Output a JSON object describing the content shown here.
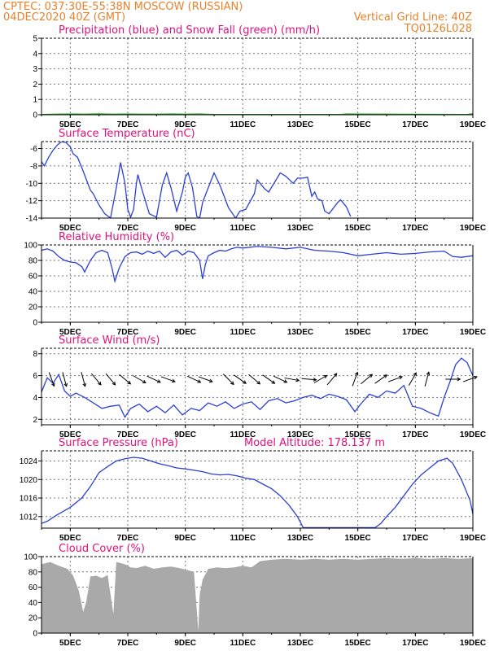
{
  "header": {
    "line1_left": "CPTEC:   037:30E-55:38N   MOSCOW (RUSSIAN)",
    "line2_left": "04DEC2020 40Z (GMT)",
    "line2_right": "Vertical Grid Line: 40Z",
    "code": "TQ0126L028"
  },
  "colors": {
    "header": "#e8822a",
    "title": "#e0117f",
    "series": "#2a3fd6",
    "snow": "#22aa22",
    "cloud": "#a9a9a9"
  },
  "chart_data": [
    {
      "type": "line",
      "title": "Precipitation (blue) and Snow Fall (green) (mm/h)",
      "x_ticks": [
        "5DEC",
        "7DEC",
        "9DEC",
        "11DEC",
        "13DEC",
        "15DEC",
        "17DEC",
        "19DEC"
      ],
      "y_ticks": [
        "5",
        "4",
        "3",
        "2",
        "1",
        "0"
      ],
      "ylim": [
        0,
        5
      ],
      "grid": true,
      "series": [
        {
          "color": "#2a3fd6",
          "x": [
            4.0,
            19.0
          ],
          "values": [
            0,
            0
          ]
        },
        {
          "color": "#22aa22",
          "x": [
            4.0,
            4.5,
            5.0,
            5.5,
            6.0,
            6.5,
            7.0,
            7.5,
            8.0,
            8.5,
            9.0,
            9.5,
            10.0,
            14.4,
            14.6,
            18.8,
            19.0
          ],
          "values": [
            0,
            0.02,
            0.03,
            0.02,
            0.04,
            0.02,
            0.03,
            0.02,
            0.02,
            0.03,
            0.02,
            0.03,
            0,
            0,
            0.03,
            0,
            0.05
          ]
        }
      ]
    },
    {
      "type": "line",
      "title": "Surface Temperature (nC)",
      "x_ticks": [
        "5DEC",
        "7DEC",
        "9DEC",
        "11DEC",
        "13DEC",
        "15DEC",
        "17DEC",
        "19DEC"
      ],
      "y_ticks": [
        "-6",
        "-8",
        "-10",
        "-12",
        "-14"
      ],
      "ylim": [
        -14,
        -5.2
      ],
      "grid": true,
      "series": [
        {
          "color": "#2a3fd6",
          "x": [
            4.0,
            4.1,
            4.25,
            4.4,
            4.55,
            4.7,
            4.85,
            5.0,
            5.1,
            5.25,
            5.4,
            5.55,
            5.7,
            5.8,
            6.0,
            6.2,
            6.4,
            6.6,
            6.75,
            6.9,
            7.0,
            7.1,
            7.2,
            7.3,
            7.35,
            7.5,
            7.75,
            8.0,
            8.2,
            8.35,
            8.5,
            8.7,
            8.9,
            9.0,
            9.1,
            9.25,
            9.4,
            9.5,
            9.6,
            9.8,
            10.0,
            10.2,
            10.5,
            10.75,
            10.9,
            11.1,
            11.4,
            11.5,
            11.75,
            11.9,
            12.3,
            12.5,
            12.75,
            12.9,
            13.1,
            13.25,
            13.4,
            13.5,
            13.6,
            13.75,
            13.85,
            14.0,
            14.3,
            14.4,
            14.6,
            14.75
          ],
          "values": [
            -7.5,
            -8.0,
            -7.0,
            -6.2,
            -5.6,
            -5.2,
            -5.3,
            -5.8,
            -6.6,
            -7.0,
            -8.2,
            -9.5,
            -10.8,
            -11.2,
            -12.5,
            -13.5,
            -14.0,
            -10.5,
            -7.6,
            -10.0,
            -13.0,
            -13.9,
            -13.0,
            -10.0,
            -9.0,
            -10.8,
            -13.5,
            -13.9,
            -10.2,
            -8.8,
            -10.5,
            -13.2,
            -11.0,
            -9.3,
            -8.8,
            -10.5,
            -13.8,
            -14.0,
            -12.2,
            -10.5,
            -8.8,
            -10.2,
            -12.8,
            -14.0,
            -13.2,
            -13.0,
            -11.2,
            -9.6,
            -10.6,
            -11.0,
            -8.8,
            -9.2,
            -10.0,
            -9.4,
            -9.4,
            -9.3,
            -11.5,
            -11.0,
            -11.8,
            -12.0,
            -13.2,
            -13.5,
            -12.2,
            -11.9,
            -12.7,
            -13.8
          ]
        }
      ]
    },
    {
      "type": "line",
      "title": "Relative Humidity (%)",
      "x_ticks": [
        "5DEC",
        "7DEC",
        "9DEC",
        "11DEC",
        "13DEC",
        "15DEC",
        "17DEC",
        "19DEC"
      ],
      "y_ticks": [
        "100",
        "80",
        "60",
        "40",
        "20",
        "0"
      ],
      "ylim": [
        0,
        100
      ],
      "grid": true,
      "series": [
        {
          "color": "#2a3fd6",
          "x": [
            4.0,
            4.2,
            4.4,
            4.6,
            4.8,
            5.0,
            5.2,
            5.4,
            5.5,
            5.7,
            5.9,
            6.1,
            6.3,
            6.45,
            6.55,
            6.7,
            6.9,
            7.1,
            7.3,
            7.5,
            7.7,
            7.9,
            8.1,
            8.3,
            8.5,
            8.7,
            8.9,
            9.1,
            9.3,
            9.5,
            9.6,
            9.7,
            9.8,
            10.0,
            10.2,
            10.4,
            10.6,
            10.8,
            11.0,
            11.5,
            12.0,
            12.5,
            13.0,
            13.5,
            14.0,
            14.5,
            15.0,
            15.5,
            16.0,
            16.5,
            17.0,
            17.5,
            18.0,
            18.3,
            18.6,
            19.0
          ],
          "values": [
            93,
            95,
            92,
            85,
            80,
            78,
            77,
            72,
            65,
            80,
            90,
            93,
            90,
            70,
            53,
            70,
            85,
            90,
            91,
            88,
            92,
            89,
            92,
            84,
            91,
            93,
            87,
            92,
            90,
            80,
            56,
            75,
            86,
            90,
            93,
            92,
            95,
            97,
            96,
            98,
            97,
            95,
            97,
            93,
            92,
            90,
            86,
            88,
            90,
            88,
            89,
            91,
            92,
            85,
            84,
            86
          ]
        }
      ]
    },
    {
      "type": "line",
      "title": "Surface Wind (m/s)",
      "x_ticks": [
        "5DEC",
        "7DEC",
        "9DEC",
        "11DEC",
        "13DEC",
        "15DEC",
        "17DEC",
        "19DEC"
      ],
      "y_ticks": [
        "8",
        "6",
        "4",
        "2"
      ],
      "ylim": [
        1.5,
        8.5
      ],
      "grid": true,
      "series": [
        {
          "color": "#2a3fd6",
          "x": [
            4.0,
            4.2,
            4.4,
            4.6,
            4.8,
            5.0,
            5.2,
            5.5,
            5.8,
            6.1,
            6.4,
            6.7,
            6.9,
            7.1,
            7.4,
            7.7,
            8.0,
            8.3,
            8.6,
            8.9,
            9.2,
            9.5,
            9.8,
            10.1,
            10.4,
            10.7,
            11.0,
            11.3,
            11.6,
            11.9,
            12.2,
            12.5,
            12.8,
            13.1,
            13.4,
            13.7,
            14.0,
            14.3,
            14.6,
            14.9,
            15.1,
            15.4,
            15.7,
            16.0,
            16.3,
            16.6,
            16.9,
            17.2,
            17.5,
            17.8,
            18.0,
            18.2,
            18.4,
            18.6,
            18.8,
            19.0
          ],
          "values": [
            4.5,
            5.8,
            5.3,
            6.1,
            4.6,
            4.1,
            4.4,
            4.0,
            3.5,
            3.0,
            3.2,
            3.3,
            2.2,
            3.0,
            3.4,
            2.7,
            3.2,
            2.6,
            3.3,
            2.4,
            3.0,
            2.8,
            3.5,
            3.2,
            3.6,
            3.0,
            3.4,
            3.6,
            2.9,
            3.7,
            3.9,
            3.5,
            3.7,
            4.0,
            4.2,
            3.9,
            4.3,
            4.1,
            3.8,
            2.7,
            3.4,
            4.3,
            4.0,
            4.6,
            4.4,
            5.1,
            3.2,
            3.0,
            2.6,
            2.3,
            4.0,
            5.4,
            7.0,
            7.6,
            7.2,
            6.0
          ]
        }
      ],
      "wind_arrows": [
        {
          "x": 4.35,
          "dir_deg": 160
        },
        {
          "x": 4.8,
          "dir_deg": 165
        },
        {
          "x": 5.45,
          "dir_deg": 165
        },
        {
          "x": 5.9,
          "dir_deg": 140
        },
        {
          "x": 6.4,
          "dir_deg": 140
        },
        {
          "x": 6.9,
          "dir_deg": 130
        },
        {
          "x": 7.4,
          "dir_deg": 120
        },
        {
          "x": 7.9,
          "dir_deg": 115
        },
        {
          "x": 8.4,
          "dir_deg": 110
        },
        {
          "x": 9.3,
          "dir_deg": 115
        },
        {
          "x": 9.7,
          "dir_deg": 110
        },
        {
          "x": 10.5,
          "dir_deg": 135
        },
        {
          "x": 10.9,
          "dir_deg": 125
        },
        {
          "x": 11.4,
          "dir_deg": 130
        },
        {
          "x": 11.9,
          "dir_deg": 125
        },
        {
          "x": 12.3,
          "dir_deg": 115
        },
        {
          "x": 12.7,
          "dir_deg": 100
        },
        {
          "x": 13.3,
          "dir_deg": 95
        },
        {
          "x": 13.7,
          "dir_deg": 60
        },
        {
          "x": 14.1,
          "dir_deg": 40
        },
        {
          "x": 14.9,
          "dir_deg": 20
        },
        {
          "x": 15.3,
          "dir_deg": 50
        },
        {
          "x": 15.8,
          "dir_deg": 55
        },
        {
          "x": 16.3,
          "dir_deg": 70
        },
        {
          "x": 16.9,
          "dir_deg": 30
        },
        {
          "x": 17.4,
          "dir_deg": 15
        },
        {
          "x": 18.3,
          "dir_deg": 90
        },
        {
          "x": 18.9,
          "dir_deg": 70
        }
      ]
    },
    {
      "type": "line",
      "title": "Surface Pressure (hPa)",
      "annotation": "Model Altitude: 178.137  m",
      "x_ticks": [
        "5DEC",
        "7DEC",
        "9DEC",
        "11DEC",
        "13DEC",
        "15DEC",
        "17DEC",
        "19DEC"
      ],
      "y_ticks": [
        "1024",
        "1020",
        "1016",
        "1012"
      ],
      "ylim": [
        1009.5,
        1026.2
      ],
      "grid": true,
      "series": [
        {
          "color": "#2a3fd6",
          "x": [
            4.0,
            4.2,
            4.5,
            5.0,
            5.4,
            5.7,
            6.0,
            6.3,
            6.6,
            6.9,
            7.2,
            7.5,
            7.8,
            8.1,
            8.4,
            8.7,
            9.0,
            9.3,
            9.6,
            9.9,
            10.2,
            10.5,
            10.8,
            11.1,
            11.4,
            11.7,
            12.0,
            12.3,
            12.6,
            12.9,
            13.1,
            15.6,
            15.8,
            16.0,
            16.3,
            16.6,
            16.9,
            17.2,
            17.5,
            17.8,
            18.1,
            18.3,
            18.6,
            18.9,
            19.0
          ],
          "values": [
            1010.5,
            1011.0,
            1012.2,
            1014.0,
            1016.0,
            1018.5,
            1021.5,
            1022.8,
            1024.0,
            1024.5,
            1024.8,
            1024.6,
            1024.0,
            1023.4,
            1023.0,
            1022.5,
            1022.3,
            1022.0,
            1021.7,
            1021.2,
            1021.0,
            1021.1,
            1020.8,
            1020.3,
            1020.0,
            1019.0,
            1018.0,
            1016.5,
            1014.5,
            1012.0,
            1009.6,
            1009.6,
            1010.5,
            1012.0,
            1014.0,
            1016.5,
            1019.0,
            1021.0,
            1022.5,
            1024.0,
            1024.6,
            1023.5,
            1020.0,
            1015.5,
            1012.5
          ]
        }
      ]
    },
    {
      "type": "area",
      "title": "Cloud Cover (%)",
      "x_ticks": [
        "5DEC",
        "7DEC",
        "9DEC",
        "11DEC",
        "13DEC",
        "15DEC",
        "17DEC",
        "19DEC"
      ],
      "y_ticks": [
        "100",
        "80",
        "60",
        "40",
        "20",
        "0"
      ],
      "ylim": [
        0,
        100
      ],
      "grid": true,
      "series": [
        {
          "color": "#a9a9a9",
          "x": [
            4.0,
            4.3,
            4.6,
            4.9,
            5.1,
            5.3,
            5.45,
            5.55,
            5.7,
            5.9,
            6.1,
            6.3,
            6.5,
            6.6,
            6.7,
            6.9,
            7.1,
            7.3,
            7.6,
            7.9,
            8.2,
            8.5,
            8.8,
            9.1,
            9.3,
            9.45,
            9.5,
            9.6,
            9.8,
            10.1,
            10.4,
            10.7,
            11.0,
            11.3,
            11.6,
            12.0,
            12.5,
            13.0,
            13.5,
            14.0,
            14.5,
            15.0,
            15.5,
            16.0,
            16.5,
            17.0,
            17.5,
            18.0,
            18.5,
            19.0
          ],
          "values": [
            90,
            93,
            88,
            84,
            75,
            55,
            28,
            40,
            74,
            75,
            72,
            76,
            25,
            93,
            92,
            90,
            86,
            85,
            88,
            84,
            86,
            87,
            85,
            82,
            80,
            3,
            50,
            70,
            84,
            86,
            85,
            86,
            88,
            86,
            94,
            96,
            97,
            96,
            97,
            96,
            97,
            96,
            97,
            98,
            97,
            98,
            97,
            98,
            97,
            98
          ]
        }
      ]
    }
  ]
}
